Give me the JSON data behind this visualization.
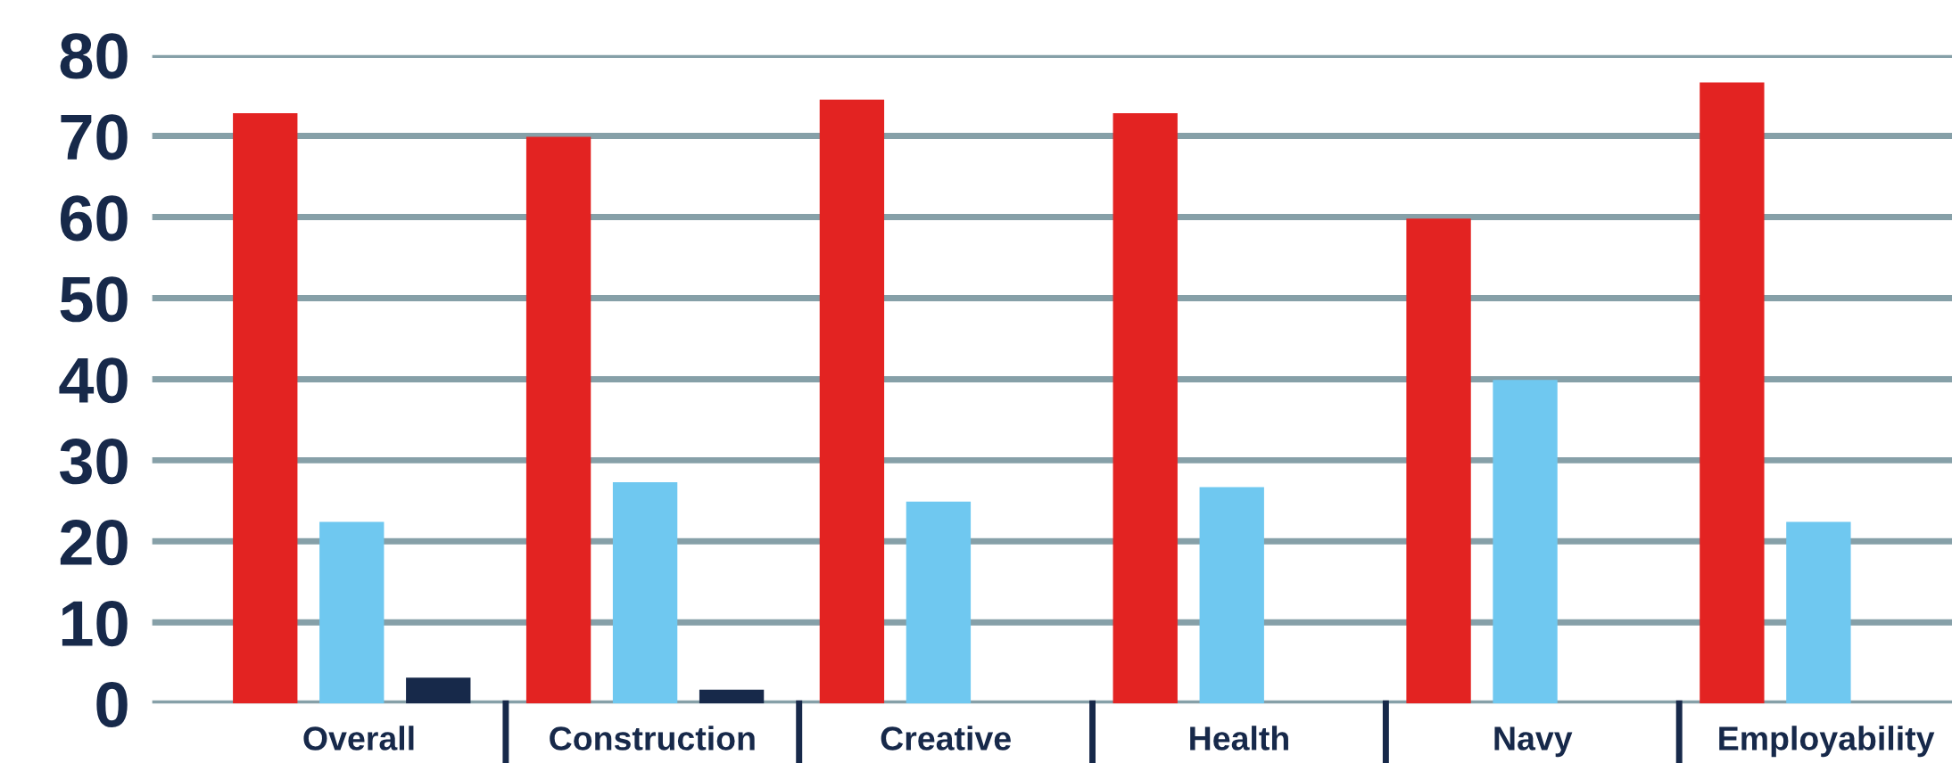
{
  "chart_data": {
    "type": "bar",
    "categories": [
      "Overall",
      "Construction",
      "Creative",
      "Health",
      "Navy",
      "Employability"
    ],
    "series": [
      {
        "color": "#e32322",
        "values": [
          72.8,
          69.9,
          74.5,
          72.8,
          59.8,
          76.6
        ]
      },
      {
        "color": "#6fc8f0",
        "values": [
          22.4,
          27.3,
          24.9,
          26.7,
          39.9,
          22.4
        ]
      },
      {
        "color": "#17294a",
        "values": [
          3.2,
          1.7,
          null,
          null,
          null,
          null
        ]
      }
    ],
    "ylim": [
      0,
      80
    ],
    "yticks": [
      0,
      10,
      20,
      30,
      40,
      50,
      60,
      70,
      80
    ],
    "grid": "y",
    "legend": false
  }
}
